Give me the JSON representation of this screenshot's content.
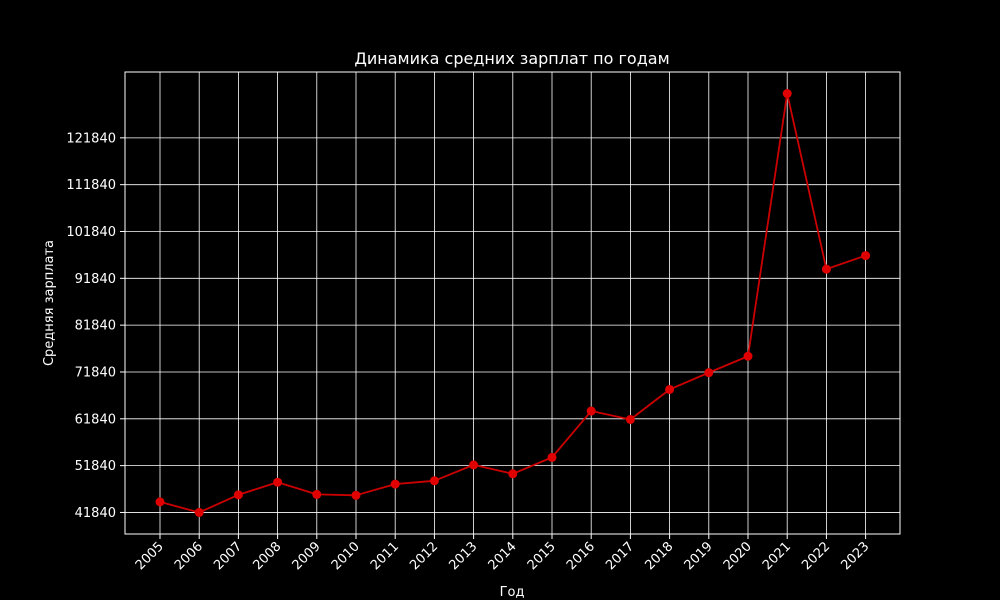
{
  "chart_data": {
    "type": "line",
    "title": "Динамика средних зарплат по годам",
    "xlabel": "Год",
    "ylabel": "Средняя зарплата",
    "categories": [
      "2005",
      "2006",
      "2007",
      "2008",
      "2009",
      "2010",
      "2011",
      "2012",
      "2013",
      "2014",
      "2015",
      "2016",
      "2017",
      "2018",
      "2019",
      "2020",
      "2021",
      "2022",
      "2023"
    ],
    "series": [
      {
        "values": [
          44100,
          41840,
          45600,
          48300,
          45700,
          45500,
          47900,
          48600,
          52000,
          50100,
          53600,
          63500,
          61700,
          68100,
          71700,
          75200,
          131300,
          93800,
          96700
        ],
        "color": "#cc0000",
        "marker_color": "#e00000"
      }
    ],
    "yticks": [
      41840,
      51840,
      61840,
      71840,
      81840,
      91840,
      101840,
      111840,
      121840
    ],
    "ylim": [
      37240,
      135900
    ],
    "grid": true,
    "background": "#000000",
    "foreground": "#ffffff"
  }
}
